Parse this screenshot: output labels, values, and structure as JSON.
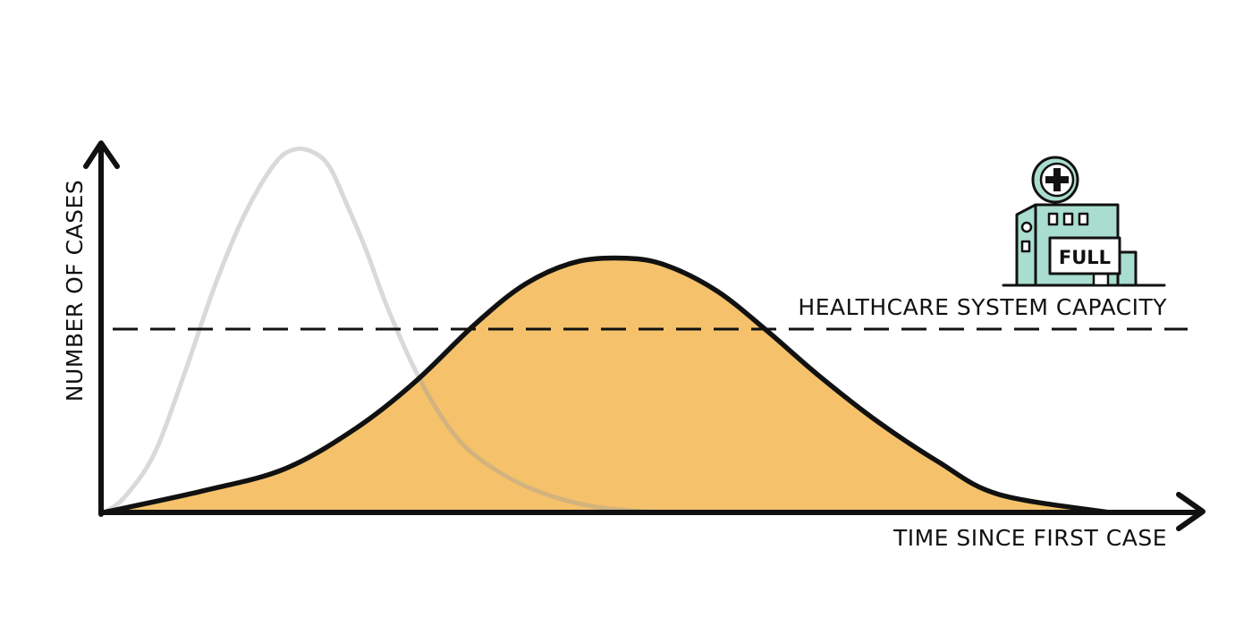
{
  "chart_data": {
    "type": "area",
    "title": "",
    "xlabel": "TIME SINCE FIRST CASE",
    "ylabel": "NUMBER OF CASES",
    "grid": false,
    "xlim": [
      0,
      100
    ],
    "ylim": [
      0,
      100
    ],
    "annotations": [
      {
        "text": "HEALTHCARE SYSTEM CAPACITY",
        "y": 50.5
      },
      {
        "text": "FULL"
      }
    ],
    "series": [
      {
        "style": "line",
        "color": "#d9d9d9",
        "x": [
          0,
          2,
          5,
          8,
          11,
          14,
          17,
          19,
          21,
          22.5,
          24,
          26,
          28,
          30.5,
          33,
          36,
          40,
          44,
          49,
          55
        ],
        "y": [
          0,
          4,
          16,
          38,
          62,
          82,
          96,
          100,
          99,
          95,
          86,
          73,
          58,
          42,
          29,
          18,
          10,
          5,
          1.5,
          0
        ]
      },
      {
        "style": "area",
        "color": "#f5c26b",
        "x": [
          0,
          10,
          18,
          25,
          31,
          37,
          42,
          47,
          52,
          56,
          61,
          66,
          71,
          77,
          83,
          89,
          100
        ],
        "y": [
          0,
          6,
          12,
          23,
          36,
          52,
          63,
          69,
          70,
          68,
          61,
          50,
          38,
          25,
          14,
          5,
          0
        ]
      }
    ],
    "colors": {
      "axis": "#111111",
      "capacity_line": "#111111",
      "hospital": "#a9ddcf"
    }
  }
}
